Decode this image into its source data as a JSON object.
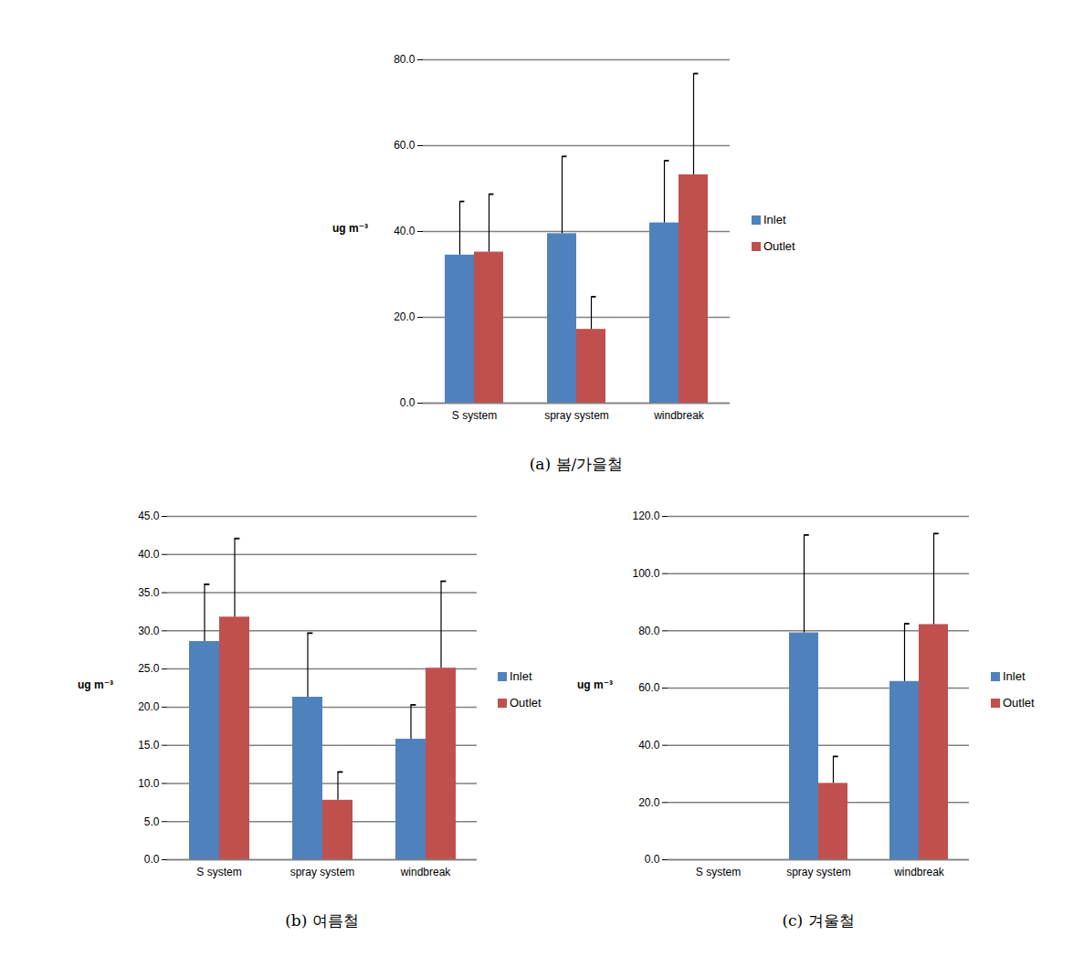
{
  "chart_data": [
    {
      "type": "bar",
      "title": "(a) 봄/가을철",
      "categories": [
        "S system",
        "spray system",
        "windbreak"
      ],
      "series": [
        {
          "name": "Inlet",
          "color": "#4f81bd",
          "values": [
            34.5,
            39.5,
            42.0
          ],
          "errors": [
            12.5,
            18.0,
            14.5
          ]
        },
        {
          "name": "Outlet",
          "color": "#c0504d",
          "values": [
            35.2,
            17.2,
            53.2
          ],
          "errors": [
            13.5,
            7.6,
            23.6
          ]
        }
      ],
      "y_label": "ug m⁻³",
      "ylim": [
        0,
        80
      ],
      "yticks": [
        {
          "value": 0,
          "label": "0.0"
        },
        {
          "value": 20,
          "label": "20.0"
        },
        {
          "value": 40,
          "label": "40.0"
        },
        {
          "value": 60,
          "label": "60.0"
        },
        {
          "value": 80,
          "label": "80.0"
        }
      ],
      "grid": true,
      "legend": "right"
    },
    {
      "type": "bar",
      "title": "(b) 여름철",
      "categories": [
        "S system",
        "spray system",
        "windbreak"
      ],
      "series": [
        {
          "name": "Inlet",
          "color": "#4f81bd",
          "values": [
            28.6,
            21.3,
            15.8
          ],
          "errors": [
            7.5,
            8.4,
            4.5
          ]
        },
        {
          "name": "Outlet",
          "color": "#c0504d",
          "values": [
            31.8,
            7.8,
            25.1
          ],
          "errors": [
            10.3,
            3.7,
            11.4
          ]
        }
      ],
      "y_label": "ug m⁻³",
      "ylim": [
        0,
        45
      ],
      "yticks": [
        {
          "value": 0,
          "label": "0.0"
        },
        {
          "value": 5,
          "label": "5.0"
        },
        {
          "value": 10,
          "label": "10.0"
        },
        {
          "value": 15,
          "label": "15.0"
        },
        {
          "value": 20,
          "label": "20.0"
        },
        {
          "value": 25,
          "label": "25.0"
        },
        {
          "value": 30,
          "label": "30.0"
        },
        {
          "value": 35,
          "label": "35.0"
        },
        {
          "value": 40,
          "label": "40.0"
        },
        {
          "value": 45,
          "label": "45.0"
        }
      ],
      "grid": true,
      "legend": "right"
    },
    {
      "type": "bar",
      "title": "(c) 겨울철",
      "categories": [
        "S system",
        "spray system",
        "windbreak"
      ],
      "series": [
        {
          "name": "Inlet",
          "color": "#4f81bd",
          "values": [
            null,
            79.3,
            62.3
          ],
          "errors": [
            null,
            34.2,
            20.2
          ]
        },
        {
          "name": "Outlet",
          "color": "#c0504d",
          "values": [
            null,
            26.7,
            82.2
          ],
          "errors": [
            null,
            9.4,
            31.8
          ]
        }
      ],
      "y_label": "ug m⁻³",
      "ylim": [
        0,
        120
      ],
      "yticks": [
        {
          "value": 0,
          "label": "0.0"
        },
        {
          "value": 20,
          "label": "20.0"
        },
        {
          "value": 40,
          "label": "40.0"
        },
        {
          "value": 60,
          "label": "60.0"
        },
        {
          "value": 80,
          "label": "80.0"
        },
        {
          "value": 100,
          "label": "100.0"
        },
        {
          "value": 120,
          "label": "120.0"
        }
      ],
      "grid": true,
      "legend": "right"
    }
  ]
}
